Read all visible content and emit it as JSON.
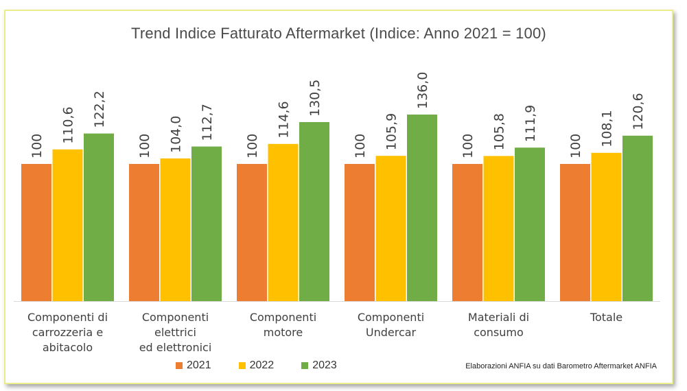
{
  "chart_data": {
    "type": "bar",
    "title": "Trend Indice Fatturato Aftermarket (Indice: Anno 2021 = 100)",
    "categories": [
      [
        "Componenti di",
        "carrozzeria e",
        "abitacolo"
      ],
      [
        "Componenti",
        "elettrici",
        "ed elettronici"
      ],
      [
        "Componenti",
        "motore"
      ],
      [
        "Componenti",
        "Undercar"
      ],
      [
        "Materiali di",
        "consumo"
      ],
      [
        "Totale"
      ]
    ],
    "series": [
      {
        "name": "2021",
        "color": "#ed7d31",
        "values": [
          100,
          100,
          100,
          100,
          100,
          100
        ],
        "labels": [
          "100",
          "100",
          "100",
          "100",
          "100",
          "100"
        ]
      },
      {
        "name": "2022",
        "color": "#ffc000",
        "values": [
          110.6,
          104.0,
          114.6,
          105.9,
          105.8,
          108.1
        ],
        "labels": [
          "110,6",
          "104,0",
          "114,6",
          "105,9",
          "105,8",
          "108,1"
        ]
      },
      {
        "name": "2023",
        "color": "#70ad47",
        "values": [
          122.2,
          112.7,
          130.5,
          136.0,
          111.9,
          120.6
        ],
        "labels": [
          "122,2",
          "112,7",
          "130,5",
          "136,0",
          "111,9",
          "120,6"
        ]
      }
    ],
    "ylim": [
      0,
      150
    ],
    "grid": false,
    "legend_position": "bottom",
    "source": "Elaborazioni ANFIA su dati Barometro Aftermarket ANFIA"
  }
}
